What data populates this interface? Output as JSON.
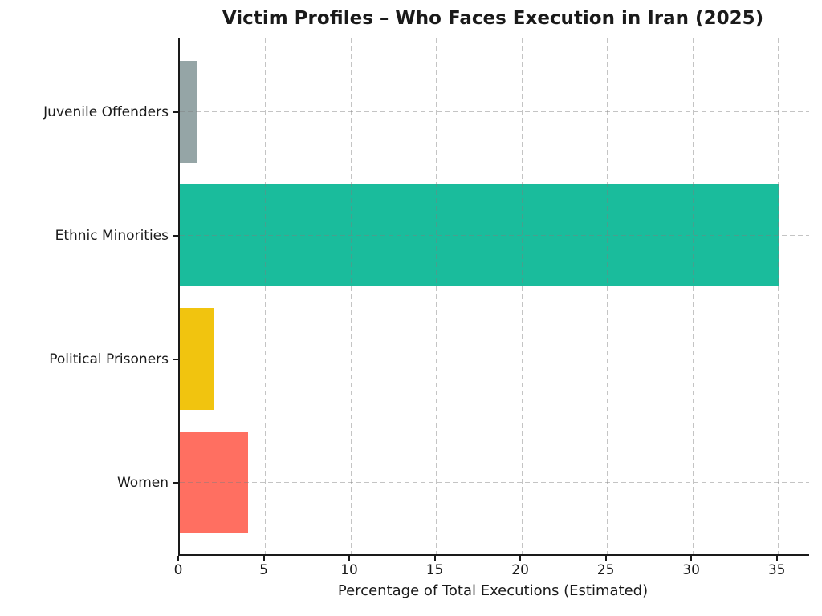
{
  "chart_data": {
    "type": "bar",
    "orientation": "horizontal",
    "title": "Victim Profiles – Who Faces Execution in Iran (2025)",
    "xlabel": "Percentage of Total Executions (Estimated)",
    "ylabel": "",
    "categories": [
      "Juvenile Offenders",
      "Ethnic Minorities",
      "Political Prisoners",
      "Women"
    ],
    "values": [
      1,
      35,
      2,
      4
    ],
    "bar_colors": [
      "#95a5a6",
      "#1abc9c",
      "#f1c40f",
      "#ff6f61"
    ],
    "xlim": [
      0,
      36.8
    ],
    "xticks": [
      0,
      5,
      10,
      15,
      20,
      25,
      30,
      35
    ],
    "grid": "dashed, both axes, drawn over bars",
    "grid_color": "#c9c9c9",
    "spine_color": "#1a1a1a",
    "legend": "none",
    "background_color": "#ffffff"
  }
}
